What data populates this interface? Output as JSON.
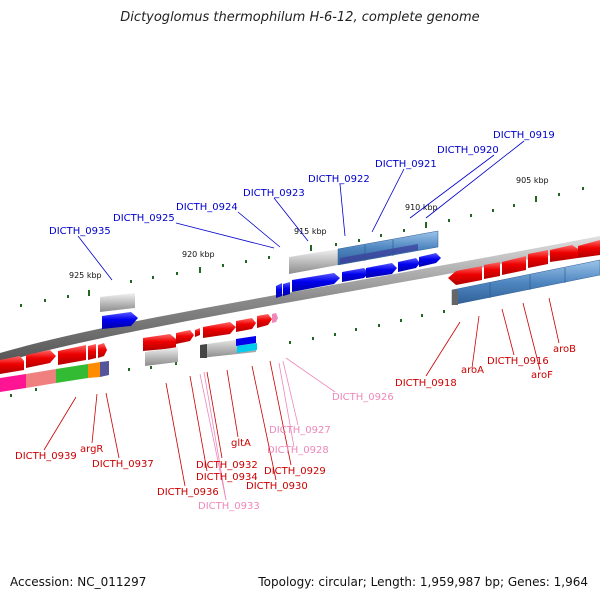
{
  "title": "Dictyoglomus thermophilum H-6-12, complete genome",
  "footer": {
    "accession": "Accession: NC_011297",
    "topology": "Topology: circular; Length: 1,959,987 bp; Genes: 1,964"
  },
  "ticks": [
    "905 kbp",
    "910 kbp",
    "915 kbp",
    "920 kbp",
    "925 kbp"
  ],
  "labels_blue": [
    "DICTH_0919",
    "DICTH_0920",
    "DICTH_0921",
    "DICTH_0922",
    "DICTH_0923",
    "DICTH_0924",
    "DICTH_0925",
    "DICTH_0935"
  ],
  "labels_red": [
    "aroB",
    "aroF",
    "DICTH_0916",
    "aroA",
    "DICTH_0918",
    "DICTH_0939",
    "argR",
    "DICTH_0937",
    "DICTH_0936",
    "DICTH_0934",
    "DICTH_0932",
    "gltA",
    "DICTH_0929",
    "DICTH_0930"
  ],
  "labels_pink": [
    "DICTH_0926",
    "DICTH_0927",
    "DICTH_0928",
    "DICTH_0933"
  ],
  "colors": {
    "blue_label": "#0000cc",
    "red_label": "#cc0000",
    "pink_label": "#ee88bb",
    "gene_red": "#ee0000",
    "gene_blue": "#0000ee",
    "steel": "#5b8fc4",
    "tick_green": "#226622"
  }
}
